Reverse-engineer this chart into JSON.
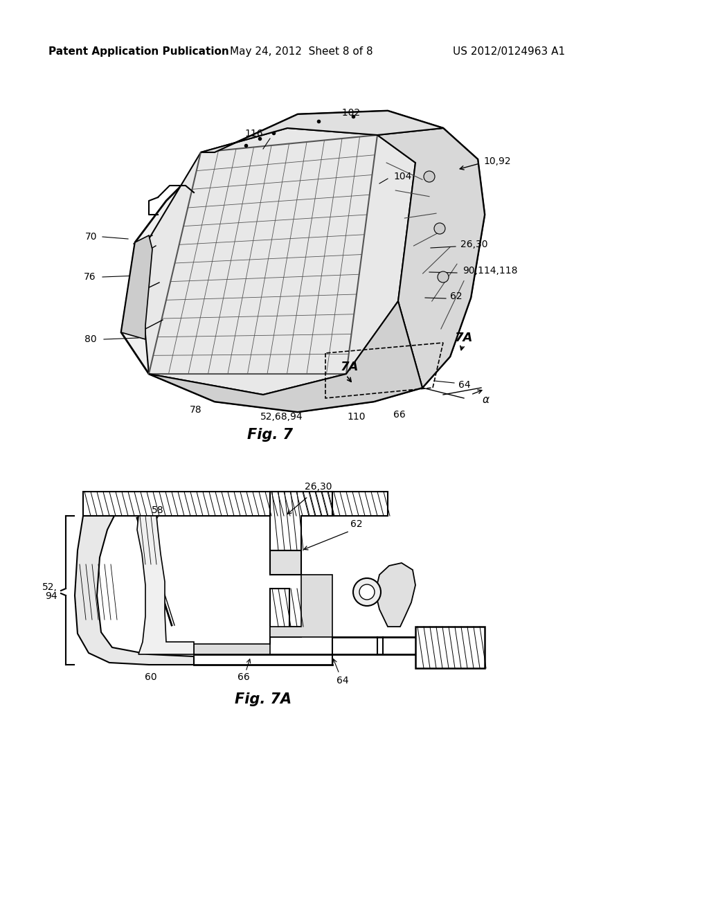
{
  "bg_color": "#ffffff",
  "header_left": "Patent Application Publication",
  "header_mid": "May 24, 2012  Sheet 8 of 8",
  "header_right": "US 2012/0124963 A1",
  "fig7_label": "Fig. 7",
  "fig7a_label": "Fig. 7A"
}
